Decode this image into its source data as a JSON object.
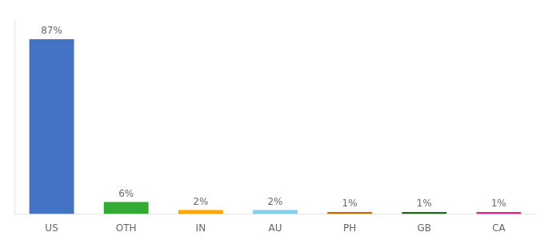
{
  "chart_data": {
    "type": "bar",
    "categories": [
      "US",
      "OTH",
      "IN",
      "AU",
      "PH",
      "GB",
      "CA"
    ],
    "values": [
      87,
      6,
      2,
      2,
      1,
      1,
      1
    ],
    "value_labels": [
      "87%",
      "6%",
      "2%",
      "2%",
      "1%",
      "1%",
      "1%"
    ],
    "colors": [
      "#4472C4",
      "#33AA33",
      "#FFA500",
      "#87CEEB",
      "#CC6600",
      "#1E6B1E",
      "#E91E8C"
    ],
    "ylim": [
      0,
      97
    ],
    "data_labels": true,
    "tick_labels": "x",
    "grid": false
  }
}
